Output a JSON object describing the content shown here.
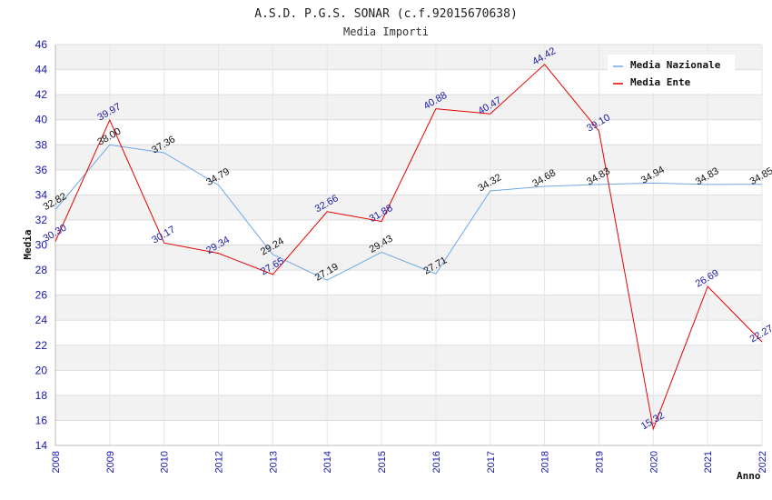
{
  "header": {
    "title": "A.S.D. P.G.S. SONAR (c.f.92015670638)",
    "subtitle": "Media Importi"
  },
  "chart_data": {
    "type": "line",
    "title": "A.S.D. P.G.S. SONAR (c.f.92015670638)",
    "subtitle": "Media Importi",
    "xlabel": "Anno",
    "ylabel": "Media",
    "categories": [
      "2008",
      "2009",
      "2010",
      "2012",
      "2013",
      "2014",
      "2015",
      "2016",
      "2017",
      "2018",
      "2019",
      "2020",
      "2021",
      "2022"
    ],
    "ylim": [
      14,
      46
    ],
    "yticks": [
      14,
      16,
      18,
      20,
      22,
      24,
      26,
      28,
      30,
      32,
      34,
      36,
      38,
      40,
      42,
      44,
      46
    ],
    "grid": true,
    "legend_position": "top-right",
    "series": [
      {
        "name": "Media Nazionale",
        "color": "#6fa8e6",
        "values": [
          32.82,
          38.0,
          37.36,
          34.79,
          29.24,
          27.19,
          29.43,
          27.71,
          34.32,
          34.68,
          34.83,
          34.94,
          34.83,
          34.85
        ],
        "labels": [
          "32.82",
          "38.00",
          "37.36",
          "34.79",
          "29.24",
          "27.19",
          "29.43",
          "27.71",
          "34.32",
          "34.68",
          "34.83",
          "34.94",
          "34.83",
          "34.85"
        ]
      },
      {
        "name": "Media Ente",
        "color": "#e60000",
        "values": [
          30.3,
          39.97,
          30.17,
          29.34,
          27.65,
          32.66,
          31.88,
          40.88,
          40.47,
          44.42,
          39.1,
          15.32,
          26.69,
          22.27
        ],
        "labels": [
          "30.30",
          "39.97",
          "30.17",
          "29.34",
          "27.65",
          "32.66",
          "31.88",
          "40.88",
          "40.47",
          "44.42",
          "39.10",
          "15.32",
          "26.69",
          "22.27"
        ]
      }
    ]
  }
}
